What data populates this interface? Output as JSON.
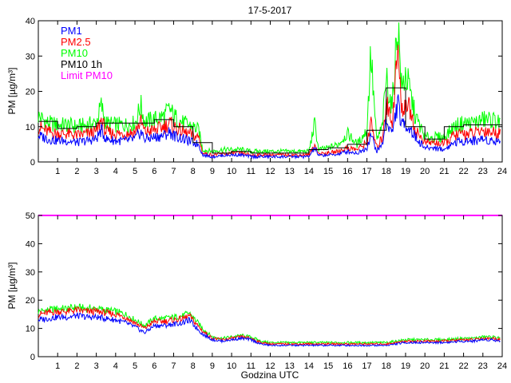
{
  "title": "17-5-2017",
  "colors": {
    "pm1": "#0000ff",
    "pm25": "#ff0000",
    "pm10": "#00ff00",
    "pm10h": "#000000",
    "limit": "#ff00ff"
  },
  "chart_data": [
    {
      "type": "line",
      "panel": "top",
      "title": "17-5-2017",
      "xlabel": "",
      "ylabel": "PM [µg/m³]",
      "xlim": [
        0,
        24
      ],
      "ylim": [
        0,
        40
      ],
      "xticks": [
        "1",
        "2",
        "3",
        "4",
        "5",
        "6",
        "7",
        "8",
        "9",
        "10",
        "11",
        "12",
        "13",
        "14",
        "15",
        "16",
        "17",
        "18",
        "19",
        "20",
        "21",
        "22",
        "23",
        "24"
      ],
      "yticks": [
        "0",
        "10",
        "20",
        "30",
        "40"
      ],
      "legend": [
        "PM1",
        "PM2.5",
        "PM10",
        "PM10 1h",
        "Limit PM10"
      ],
      "series": [
        {
          "name": "PM1",
          "x": [
            0,
            0.5,
            1,
            1.5,
            2,
            2.5,
            3,
            3.25,
            3.5,
            4,
            4.5,
            5,
            5.3,
            5.5,
            6,
            6.5,
            6.8,
            7,
            7.5,
            8,
            8.3,
            8.5,
            9,
            9.5,
            10,
            10.5,
            11,
            11.5,
            12,
            12.5,
            13,
            13.5,
            14,
            14.3,
            14.5,
            15,
            15.5,
            16,
            16.5,
            17,
            17.2,
            17.5,
            17.8,
            18,
            18.3,
            18.6,
            18.8,
            19,
            19.3,
            19.5,
            20,
            20.5,
            21,
            21.5,
            22,
            22.5,
            23,
            23.5,
            23.9
          ],
          "values": [
            7.5,
            6.5,
            6,
            6,
            5.5,
            6,
            6.5,
            9,
            6.5,
            6,
            6,
            6.5,
            8.5,
            6.5,
            7,
            7.5,
            8.5,
            7.5,
            6.5,
            5.5,
            5,
            2,
            1.5,
            1.8,
            2,
            2,
            1.5,
            1.5,
            1.5,
            1.5,
            1.5,
            1.5,
            1.5,
            4,
            1.8,
            2,
            2.2,
            3,
            2.5,
            4,
            8,
            3,
            5,
            12,
            8,
            17,
            10,
            11,
            9,
            7,
            4,
            4,
            3.5,
            5.5,
            6,
            6,
            6.5,
            6,
            6
          ]
        },
        {
          "name": "PM2.5",
          "x": [
            0,
            0.5,
            1,
            1.5,
            2,
            2.5,
            3,
            3.25,
            3.5,
            4,
            4.5,
            5,
            5.3,
            5.5,
            6,
            6.5,
            6.8,
            7,
            7.5,
            8,
            8.3,
            8.5,
            9,
            9.5,
            10,
            10.5,
            11,
            11.5,
            12,
            12.5,
            13,
            13.5,
            14,
            14.3,
            14.5,
            15,
            15.5,
            16,
            16.5,
            17,
            17.2,
            17.5,
            17.8,
            18,
            18.3,
            18.6,
            18.8,
            19,
            19.3,
            19.5,
            20,
            20.5,
            21,
            21.5,
            22,
            22.5,
            23,
            23.5,
            23.9
          ],
          "values": [
            10,
            8.5,
            8,
            8,
            7.5,
            8,
            8.5,
            12,
            8.5,
            8,
            8,
            8.5,
            11.5,
            8.5,
            9,
            10,
            11,
            10,
            8.5,
            7.5,
            7,
            2.5,
            2,
            2.3,
            2.5,
            2.5,
            2,
            2,
            2,
            2,
            2,
            2,
            2,
            5,
            2.3,
            2.5,
            3,
            4,
            3.5,
            5.5,
            11,
            4,
            7,
            17,
            11,
            32,
            14,
            17,
            14,
            9,
            5.5,
            5.5,
            5,
            7.5,
            8,
            8,
            9,
            8.5,
            8
          ]
        },
        {
          "name": "PM10",
          "x": [
            0,
            0.5,
            1,
            1.5,
            2,
            2.5,
            3,
            3.25,
            3.5,
            4,
            4.5,
            5,
            5.3,
            5.5,
            6,
            6.5,
            6.8,
            7,
            7.5,
            8,
            8.3,
            8.5,
            9,
            9.5,
            10,
            10.5,
            11,
            11.5,
            12,
            12.5,
            13,
            13.5,
            14,
            14.3,
            14.5,
            15,
            15.5,
            16,
            16.5,
            17,
            17.2,
            17.5,
            17.8,
            18,
            18.3,
            18.6,
            18.8,
            19,
            19.3,
            19.5,
            20,
            20.5,
            21,
            21.5,
            22,
            22.5,
            23,
            23.5,
            23.9
          ],
          "values": [
            13,
            11,
            10.5,
            10.5,
            10,
            10.5,
            11,
            16,
            11,
            10.5,
            10.5,
            11,
            16,
            11.5,
            12,
            13,
            15,
            13,
            11,
            10,
            9,
            3.5,
            3,
            3.5,
            3.5,
            3.5,
            3,
            3,
            3,
            3,
            3,
            3,
            3,
            11,
            3.5,
            4,
            5,
            8,
            5,
            9,
            31,
            6,
            10,
            24,
            15,
            40,
            20,
            25,
            18,
            13,
            7,
            7,
            7,
            10,
            11,
            11,
            12,
            12,
            11
          ]
        },
        {
          "name": "PM10 1h",
          "step": true,
          "x": [
            0,
            1,
            2,
            3,
            4,
            5,
            6,
            7,
            8,
            9,
            10,
            11,
            12,
            13,
            14,
            15,
            16,
            17,
            18,
            19,
            20,
            21,
            22,
            23,
            24
          ],
          "values": [
            11.5,
            9.5,
            10,
            11,
            11,
            11,
            12,
            10,
            5.5,
            2.5,
            3,
            2.5,
            2.5,
            2.5,
            3.5,
            4,
            5,
            9,
            21,
            10,
            6.5,
            10,
            10.5,
            10.5,
            10.5
          ]
        }
      ]
    },
    {
      "type": "line",
      "panel": "bottom",
      "title": "",
      "xlabel": "Godzina UTC",
      "ylabel": "PM [µg/m³]",
      "xlim": [
        0,
        24
      ],
      "ylim": [
        0,
        50
      ],
      "xticks": [
        "1",
        "2",
        "3",
        "4",
        "5",
        "6",
        "7",
        "8",
        "9",
        "10",
        "11",
        "12",
        "13",
        "14",
        "15",
        "16",
        "17",
        "18",
        "19",
        "20",
        "21",
        "22",
        "23",
        "24"
      ],
      "yticks": [
        "0",
        "10",
        "20",
        "30",
        "40",
        "50"
      ],
      "series": [
        {
          "name": "PM1",
          "x": [
            0,
            0.5,
            1,
            1.5,
            2,
            2.5,
            3,
            3.5,
            4,
            4.5,
            5,
            5.5,
            6,
            6.5,
            7,
            7.5,
            7.8,
            8,
            8.5,
            9,
            9.5,
            10,
            10.5,
            11,
            11.5,
            12,
            13,
            14,
            15,
            16,
            17,
            17.5,
            18,
            18.5,
            19,
            20,
            21,
            22,
            22.5,
            23,
            23.5,
            23.9
          ],
          "values": [
            13,
            13.5,
            14,
            14,
            14.5,
            14,
            14,
            13.5,
            13,
            12,
            10.5,
            8.5,
            11,
            11,
            11.5,
            12,
            13,
            11.5,
            8,
            6,
            5.5,
            6,
            6.5,
            6,
            4.5,
            4,
            4,
            4,
            4,
            4,
            4,
            4,
            4,
            4.5,
            5,
            5,
            5,
            5.5,
            5.5,
            6,
            6,
            5.5
          ]
        },
        {
          "name": "PM2.5",
          "x": [
            0,
            0.5,
            1,
            1.5,
            2,
            2.5,
            3,
            3.5,
            4,
            4.5,
            5,
            5.5,
            6,
            6.5,
            7,
            7.5,
            7.8,
            8,
            8.5,
            9,
            9.5,
            10,
            10.5,
            11,
            11.5,
            12,
            13,
            14,
            15,
            16,
            17,
            17.5,
            18,
            18.5,
            19,
            20,
            21,
            22,
            22.5,
            23,
            23.5,
            23.9
          ],
          "values": [
            15,
            15.5,
            16,
            16,
            16.5,
            16,
            16,
            15.5,
            15,
            14,
            12,
            10,
            12.5,
            12.5,
            13,
            13.5,
            14.5,
            13,
            9,
            6.5,
            6,
            6.5,
            7,
            6.5,
            5,
            4.5,
            4.5,
            4.5,
            4.5,
            4.5,
            4.5,
            4.5,
            4.5,
            5,
            5.5,
            5.5,
            5.5,
            6,
            6,
            6.5,
            6.5,
            6
          ]
        },
        {
          "name": "PM10",
          "x": [
            0,
            0.5,
            1,
            1.5,
            2,
            2.5,
            3,
            3.5,
            4,
            4.5,
            5,
            5.5,
            6,
            6.5,
            7,
            7.5,
            7.8,
            8,
            8.5,
            9,
            9.5,
            10,
            10.5,
            11,
            11.5,
            12,
            13,
            14,
            15,
            16,
            17,
            17.5,
            18,
            18.5,
            19,
            20,
            21,
            22,
            22.5,
            23,
            23.5,
            23.9
          ],
          "values": [
            16,
            16.5,
            17,
            17,
            17.5,
            17,
            17,
            16.5,
            16,
            15,
            13,
            11,
            13.5,
            13.5,
            14,
            14.5,
            15.5,
            14,
            10,
            7,
            6.5,
            7,
            7.5,
            7,
            5.5,
            5,
            5,
            5,
            5,
            5,
            5,
            5,
            5,
            5.5,
            6,
            6,
            6,
            6.5,
            6.5,
            7,
            7,
            6.5
          ]
        },
        {
          "name": "Limit PM10",
          "x": [
            0,
            24
          ],
          "values": [
            50,
            50
          ]
        }
      ]
    }
  ]
}
